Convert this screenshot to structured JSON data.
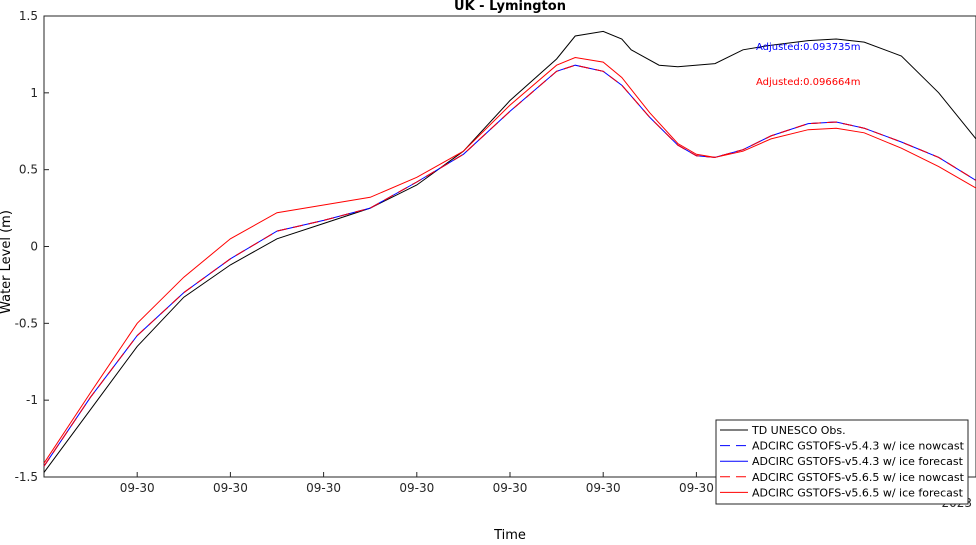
{
  "chart_data": {
    "type": "line",
    "title": "UK - Lymington",
    "xlabel": "Time",
    "ylabel": "Water Level (m)",
    "xlim": [
      0,
      1
    ],
    "ylim": [
      -1.5,
      1.5
    ],
    "yticks": [
      1.5,
      1,
      0.5,
      0,
      -0.5,
      -1,
      -1.5
    ],
    "ytick_labels": [
      "1.5",
      "1",
      "0.5",
      "0",
      "-0.5",
      "-1",
      "-1.5"
    ],
    "xticks": [
      0.1,
      0.2,
      0.3,
      0.4,
      0.5,
      0.6,
      0.7,
      0.8,
      0.9
    ],
    "xtick_labels": [
      "09-30",
      "09-30",
      "09-30",
      "09-30",
      "09-30",
      "09-30",
      "09-30",
      "09-30",
      "09-30"
    ],
    "x_secondary_label": "2023",
    "grid": false,
    "legend_position": "bottom-right",
    "annotations": [
      {
        "text": "Adjusted:0.093735m",
        "color": "#0000ff",
        "x": 0.82,
        "y": 1.28
      },
      {
        "text": "Adjusted:0.096664m",
        "color": "#ff0000",
        "x": 0.82,
        "y": 1.05
      }
    ],
    "series": [
      {
        "name": "TD UNESCO Obs.",
        "color": "#000000",
        "dash": "solid",
        "x": [
          0,
          0.05,
          0.1,
          0.15,
          0.2,
          0.25,
          0.3,
          0.35,
          0.4,
          0.45,
          0.5,
          0.55,
          0.57,
          0.6,
          0.62,
          0.63,
          0.66,
          0.68,
          0.72,
          0.75,
          0.78,
          0.82,
          0.85,
          0.88,
          0.92,
          0.96,
          1.0
        ],
        "y": [
          -1.47,
          -1.06,
          -0.65,
          -0.33,
          -0.12,
          0.05,
          0.15,
          0.25,
          0.4,
          0.62,
          0.95,
          1.22,
          1.37,
          1.4,
          1.35,
          1.28,
          1.18,
          1.17,
          1.19,
          1.28,
          1.31,
          1.34,
          1.35,
          1.33,
          1.24,
          1.0,
          0.7
        ]
      },
      {
        "name": "ADCIRC GSTOFS-v5.4.3 w/ ice nowcast",
        "color": "#0000ff",
        "dash": "dashed",
        "x": [
          0,
          0.05,
          0.1,
          0.15,
          0.2,
          0.25,
          0.3,
          0.35,
          0.4,
          0.45,
          0.5,
          0.55,
          0.57,
          0.6,
          0.62,
          0.65,
          0.68,
          0.7,
          0.72,
          0.75,
          0.78,
          0.82,
          0.85,
          0.88,
          0.92,
          0.96,
          1.0
        ],
        "y": [
          -1.43,
          -0.98,
          -0.58,
          -0.3,
          -0.08,
          0.1,
          0.17,
          0.25,
          0.42,
          0.6,
          0.88,
          1.14,
          1.18,
          1.14,
          1.05,
          0.84,
          0.66,
          0.59,
          0.58,
          0.63,
          0.72,
          0.8,
          0.81,
          0.77,
          0.68,
          0.58,
          0.43
        ]
      },
      {
        "name": "ADCIRC GSTOFS-v5.4.3 w/ ice forecast",
        "color": "#0000ff",
        "dash": "solid",
        "x": [
          0,
          0.05,
          0.1,
          0.15,
          0.2,
          0.25,
          0.3,
          0.35,
          0.4,
          0.45,
          0.5,
          0.55,
          0.57,
          0.6,
          0.62,
          0.65,
          0.68,
          0.7,
          0.72,
          0.75,
          0.78,
          0.82,
          0.85,
          0.88,
          0.92,
          0.96,
          1.0
        ],
        "y": [
          -1.43,
          -0.98,
          -0.58,
          -0.3,
          -0.08,
          0.1,
          0.17,
          0.25,
          0.42,
          0.6,
          0.88,
          1.14,
          1.18,
          1.14,
          1.05,
          0.84,
          0.66,
          0.59,
          0.58,
          0.63,
          0.72,
          0.8,
          0.81,
          0.77,
          0.68,
          0.58,
          0.43
        ]
      },
      {
        "name": "ADCIRC GSTOFS-v5.6.5 w/ ice nowcast",
        "color": "#ff0000",
        "dash": "dashed",
        "x": [
          0,
          0.05,
          0.1,
          0.15,
          0.2,
          0.25,
          0.3,
          0.35,
          0.4,
          0.45,
          0.5,
          0.55,
          0.57,
          0.6,
          0.62,
          0.65,
          0.68,
          0.7,
          0.72,
          0.75,
          0.78,
          0.82,
          0.85,
          0.88,
          0.92,
          0.96,
          1.0
        ],
        "y": [
          -1.43,
          -0.98,
          -0.58,
          -0.3,
          -0.08,
          0.1,
          0.17,
          0.25,
          0.42,
          0.6,
          0.88,
          1.14,
          1.18,
          1.14,
          1.05,
          0.84,
          0.66,
          0.59,
          0.58,
          0.63,
          0.72,
          0.8,
          0.81,
          0.77,
          0.68,
          0.58,
          0.43
        ]
      },
      {
        "name": "ADCIRC GSTOFS-v5.6.5 w/ ice forecast",
        "color": "#ff0000",
        "dash": "solid",
        "x": [
          0,
          0.05,
          0.1,
          0.15,
          0.2,
          0.25,
          0.3,
          0.35,
          0.4,
          0.45,
          0.5,
          0.55,
          0.57,
          0.6,
          0.62,
          0.65,
          0.68,
          0.7,
          0.72,
          0.75,
          0.78,
          0.82,
          0.85,
          0.88,
          0.92,
          0.96,
          1.0
        ],
        "y": [
          -1.41,
          -0.95,
          -0.5,
          -0.2,
          0.05,
          0.22,
          0.27,
          0.32,
          0.45,
          0.62,
          0.92,
          1.18,
          1.23,
          1.2,
          1.1,
          0.87,
          0.67,
          0.6,
          0.58,
          0.62,
          0.7,
          0.76,
          0.77,
          0.74,
          0.64,
          0.52,
          0.38
        ]
      }
    ]
  }
}
